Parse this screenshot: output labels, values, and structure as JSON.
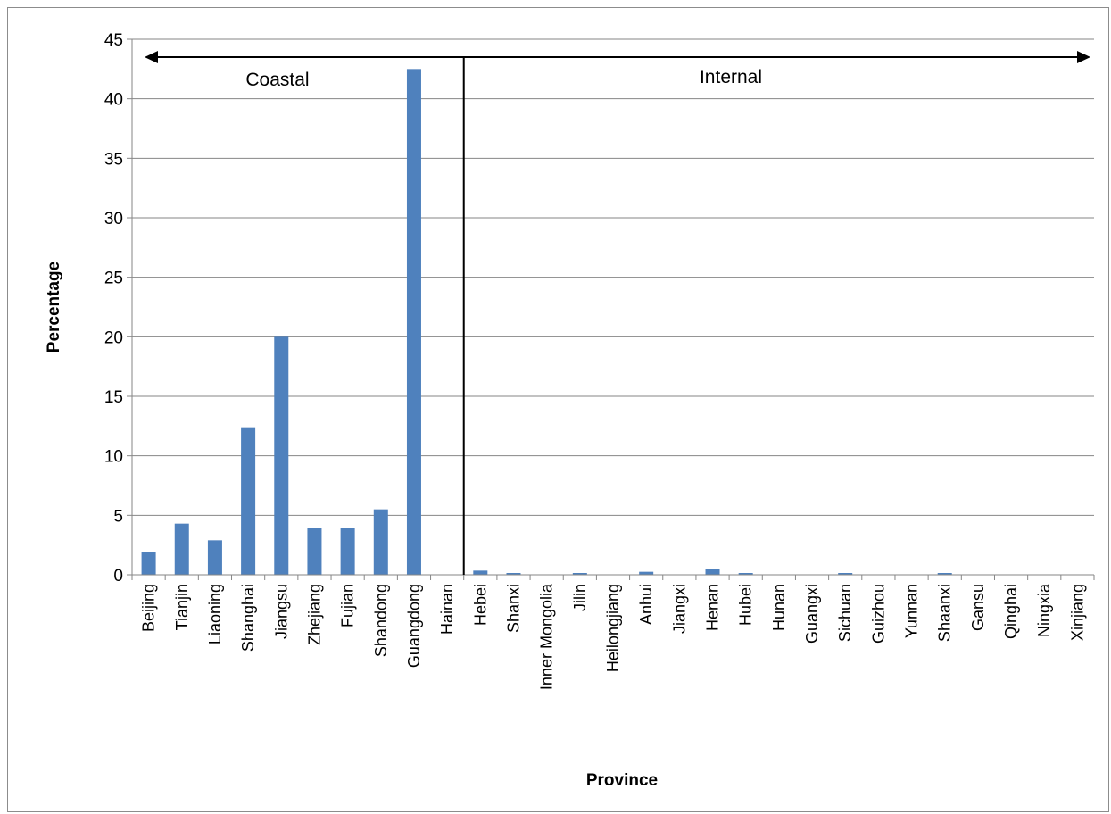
{
  "chart_data": {
    "type": "bar",
    "xlabel": "Province",
    "ylabel": "Percentage",
    "ylim": [
      0,
      45
    ],
    "yticks": [
      0,
      5,
      10,
      15,
      20,
      25,
      30,
      35,
      40,
      45
    ],
    "grid": true,
    "bar_color": "#4f81bd",
    "categories": [
      "Beijing",
      "Tianjin",
      "Liaoning",
      "Shanghai",
      "Jiangsu",
      "Zhejiang",
      "Fujian",
      "Shandong",
      "Guangdong",
      "Hainan",
      "Hebei",
      "Shanxi",
      "Inner Mongolia",
      "Jilin",
      "Heilongjiang",
      "Anhui",
      "Jiangxi",
      "Henan",
      "Hubei",
      "Hunan",
      "Guangxi",
      "Sichuan",
      "Guizhou",
      "Yunnan",
      "Shaanxi",
      "Gansu",
      "Qinghai",
      "Ningxia",
      "Xinjiang"
    ],
    "values": [
      1.9,
      4.3,
      2.9,
      12.4,
      20.0,
      3.9,
      3.9,
      5.5,
      42.5,
      0,
      0.35,
      0.15,
      0,
      0.15,
      0,
      0.25,
      0,
      0.45,
      0.15,
      0,
      0,
      0.15,
      0,
      0,
      0.15,
      0,
      0,
      0,
      0
    ],
    "annotations": {
      "left_label": "Coastal",
      "right_label": "Internal",
      "divider_after_category": "Hainan"
    }
  }
}
